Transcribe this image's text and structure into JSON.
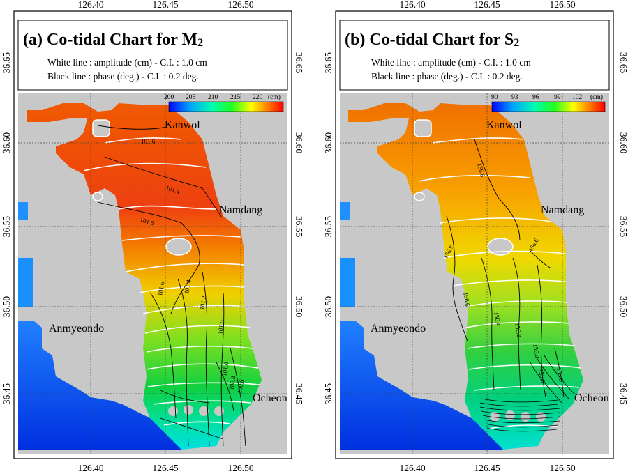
{
  "panels": [
    {
      "id": "a",
      "title_main": "(a) Co-tidal Chart for M",
      "title_sub": "2",
      "line1": "White line : amplitude (cm)  - C.I. : 1.0 cm",
      "line2": "Black line : phase (deg.)        - C.I. : 0.2 deg.",
      "colorbar_ticks": [
        "200",
        "205",
        "210",
        "215",
        "220",
        "(cm)"
      ],
      "contour_labels": [
        "101.6",
        "101.4",
        "101.6",
        "101.6",
        "101.4",
        "101.2",
        "101.0",
        "101.0",
        "100.8",
        "100.6"
      ],
      "places": [
        "Kanwol",
        "Namdang",
        "Anmyeondo",
        "Ocheon"
      ]
    },
    {
      "id": "b",
      "title_main": "(b) Co-tidal Chart for S",
      "title_sub": "2",
      "line1": "White line : amplitude (cm)  - C.I. : 1.0 cm",
      "line2": "Black line : phase (deg.)        - C.I. : 0.2 deg.",
      "colorbar_ticks": [
        "90",
        "93",
        "96",
        "99",
        "102",
        "(cm)"
      ],
      "contour_labels": [
        "156.8",
        "156.8",
        "156.6",
        "156.6",
        "156.4",
        "156.2",
        "156.0",
        "155.8",
        "155.6"
      ],
      "places": [
        "Kanwol",
        "Namdang",
        "Anmyeondo",
        "Ocheon"
      ]
    }
  ],
  "axes": {
    "lon_ticks": [
      "126.40",
      "126.45",
      "126.50"
    ],
    "lat_ticks": [
      "36.65",
      "36.60",
      "36.55",
      "36.50",
      "36.45"
    ]
  },
  "colors": {
    "land": "#c8c8c8",
    "grid": "#555555",
    "colorbar": [
      "#0000ff",
      "#00a0ff",
      "#00ffb0",
      "#20ff20",
      "#ffff00",
      "#ff8000",
      "#ff0000"
    ],
    "amplitude_line": "#ffffff",
    "phase_line": "#000000"
  }
}
